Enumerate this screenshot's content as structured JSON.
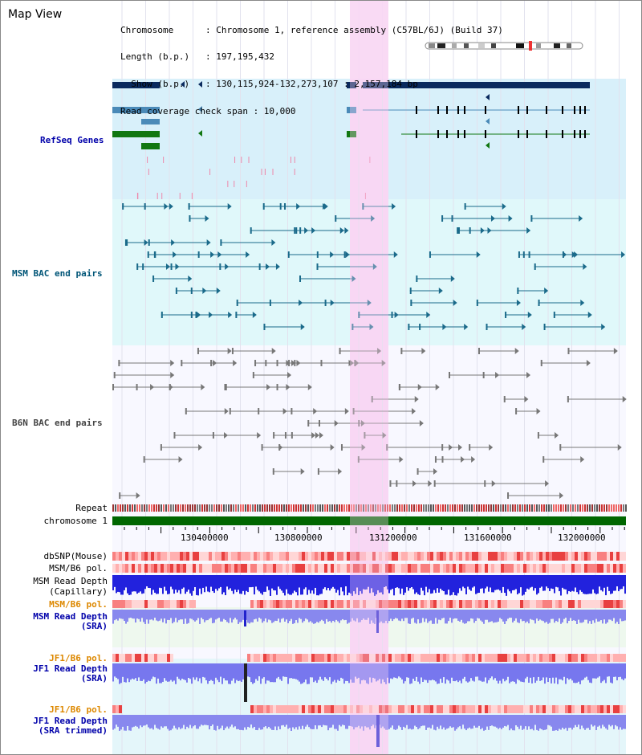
{
  "title": "Map View",
  "info": {
    "lines": [
      "Chromosome      : Chromosome 1, reference assembly (C57BL/6J) (Build 37)",
      "Length (b.p.)   : 197,195,432",
      "  Show (b.p.)   : 130,115,924-132,273,107 : 2,157,184 bp",
      "Read coverage check span : 10,000"
    ]
  },
  "tracks": {
    "refseq": {
      "label": "RefSeq Genes",
      "color": "#0000aa"
    },
    "msm_bac": {
      "label": "MSM BAC end pairs",
      "color": "#005577"
    },
    "b6n_bac": {
      "label": "B6N BAC end pairs",
      "color": "#444444"
    },
    "repeat": {
      "label": "Repeat"
    },
    "chromosome": {
      "label": "chromosome 1"
    },
    "dbsnp": {
      "label": "dbSNP(Mouse)"
    },
    "msm_b6_pol": {
      "label": "MSM/B6 pol."
    },
    "msm_depth_cap": {
      "label1": "MSM Read Depth",
      "label2": "(Capillary)"
    },
    "msm_b6_pol2": {
      "label": "MSM/B6 pol.",
      "color": "#dd8800"
    },
    "msm_depth_sra": {
      "label1": "MSM Read Depth",
      "label2": "(SRA)",
      "color": "#0000aa"
    },
    "jf1_b6_pol": {
      "label": "JF1/B6 pol.",
      "color": "#dd8800"
    },
    "jf1_depth_sra": {
      "label1": "JF1 Read Depth",
      "label2": "(SRA)",
      "color": "#0000aa"
    },
    "jf1_b6_pol2": {
      "label": "JF1/B6 pol.",
      "color": "#dd8800"
    },
    "jf1_depth_trim": {
      "label1": "JF1 Read Depth",
      "label2": "(SRA trimmed)",
      "color": "#0000aa"
    }
  },
  "axis": {
    "ticks": [
      "130400000",
      "130800000",
      "131200000",
      "131600000",
      "132000000"
    ]
  },
  "colors": {
    "highlight": "#f8d8f4",
    "refseq_bg": "#d8f0fa",
    "msm_bg": "#e0f8fa",
    "chromosome_bar": "#006600"
  }
}
